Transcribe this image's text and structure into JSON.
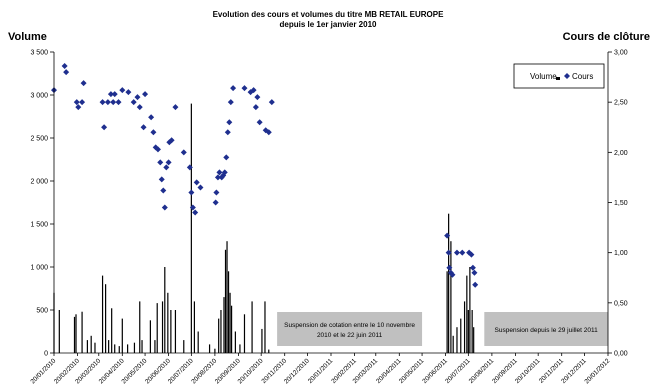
{
  "chart_data": {
    "type": "bar",
    "title": "Evolution des cours et volumes du titre MB RETAIL EUROPE",
    "subtitle": "depuis le 1er janvier 2010",
    "ylabel_left": "Volume",
    "ylabel_right": "Cours de clôture",
    "ylim_left": [
      0,
      3500
    ],
    "ylim_right": [
      0,
      3.0
    ],
    "y_ticks_left": [
      "0",
      "500",
      "1 000",
      "1 500",
      "2 000",
      "2 500",
      "3 000",
      "3 500"
    ],
    "y_ticks_right": [
      "0,00",
      "0,50",
      "1,00",
      "1,50",
      "2,00",
      "2,50",
      "3,00"
    ],
    "x_ticks": [
      "20/01/2010",
      "20/02/2010",
      "20/03/2010",
      "20/04/2010",
      "20/05/2010",
      "20/06/2010",
      "20/07/2010",
      "20/08/2010",
      "20/09/2010",
      "20/10/2010",
      "20/11/2010",
      "20/12/2010",
      "20/01/2011",
      "20/02/2011",
      "20/03/2011",
      "20/04/2011",
      "20/05/2011",
      "20/06/2011",
      "20/07/2011",
      "20/08/2011",
      "20/09/2011",
      "20/10/2011",
      "20/11/2011",
      "20/12/2011",
      "20/01/2012"
    ],
    "legend": {
      "position": "top-right",
      "items": [
        "Volume",
        "Cours"
      ]
    },
    "series": [
      {
        "name": "Volume",
        "type": "bar",
        "axis": "left",
        "color": "#000000",
        "points": [
          [
            "2010-01-20",
            700
          ],
          [
            "2010-01-27",
            500
          ],
          [
            "2010-02-16",
            420
          ],
          [
            "2010-02-18",
            450
          ],
          [
            "2010-02-26",
            480
          ],
          [
            "2010-03-05",
            150
          ],
          [
            "2010-03-10",
            200
          ],
          [
            "2010-03-15",
            120
          ],
          [
            "2010-03-25",
            900
          ],
          [
            "2010-03-29",
            800
          ],
          [
            "2010-04-02",
            150
          ],
          [
            "2010-04-06",
            520
          ],
          [
            "2010-04-10",
            100
          ],
          [
            "2010-04-16",
            80
          ],
          [
            "2010-04-20",
            400
          ],
          [
            "2010-04-27",
            100
          ],
          [
            "2010-05-06",
            120
          ],
          [
            "2010-05-13",
            600
          ],
          [
            "2010-05-16",
            150
          ],
          [
            "2010-05-27",
            380
          ],
          [
            "2010-06-02",
            150
          ],
          [
            "2010-06-05",
            580
          ],
          [
            "2010-06-12",
            600
          ],
          [
            "2010-06-15",
            1000
          ],
          [
            "2010-06-19",
            700
          ],
          [
            "2010-06-23",
            500
          ],
          [
            "2010-06-29",
            500
          ],
          [
            "2010-07-10",
            150
          ],
          [
            "2010-07-20",
            2900
          ],
          [
            "2010-07-24",
            600
          ],
          [
            "2010-07-29",
            250
          ],
          [
            "2010-08-13",
            100
          ],
          [
            "2010-08-20",
            50
          ],
          [
            "2010-08-25",
            400
          ],
          [
            "2010-08-28",
            500
          ],
          [
            "2010-09-01",
            650
          ],
          [
            "2010-09-03",
            1200
          ],
          [
            "2010-09-05",
            1300
          ],
          [
            "2010-09-07",
            950
          ],
          [
            "2010-09-09",
            700
          ],
          [
            "2010-09-11",
            550
          ],
          [
            "2010-09-16",
            250
          ],
          [
            "2010-09-22",
            100
          ],
          [
            "2010-09-28",
            450
          ],
          [
            "2010-10-08",
            600
          ],
          [
            "2010-10-21",
            280
          ],
          [
            "2010-10-25",
            600
          ],
          [
            "2010-10-30",
            40
          ],
          [
            "2011-06-22",
            950
          ],
          [
            "2011-06-24",
            1620
          ],
          [
            "2011-06-27",
            1300
          ],
          [
            "2011-06-30",
            200
          ],
          [
            "2011-07-05",
            300
          ],
          [
            "2011-07-10",
            400
          ],
          [
            "2011-07-15",
            600
          ],
          [
            "2011-07-18",
            900
          ],
          [
            "2011-07-20",
            500
          ],
          [
            "2011-07-22",
            1000
          ],
          [
            "2011-07-25",
            500
          ],
          [
            "2011-07-27",
            300
          ]
        ]
      },
      {
        "name": "Cours",
        "type": "scatter",
        "axis": "right",
        "color": "#1f2f8f",
        "points": [
          [
            "2010-01-20",
            2.62
          ],
          [
            "2010-02-03",
            2.86
          ],
          [
            "2010-02-05",
            2.8
          ],
          [
            "2010-02-19",
            2.5
          ],
          [
            "2010-02-21",
            2.45
          ],
          [
            "2010-02-26",
            2.5
          ],
          [
            "2010-02-28",
            2.69
          ],
          [
            "2010-03-25",
            2.5
          ],
          [
            "2010-03-27",
            2.25
          ],
          [
            "2010-04-01",
            2.5
          ],
          [
            "2010-04-05",
            2.58
          ],
          [
            "2010-04-08",
            2.5
          ],
          [
            "2010-04-10",
            2.58
          ],
          [
            "2010-04-15",
            2.5
          ],
          [
            "2010-04-20",
            2.62
          ],
          [
            "2010-04-28",
            2.6
          ],
          [
            "2010-05-05",
            2.5
          ],
          [
            "2010-05-10",
            2.55
          ],
          [
            "2010-05-13",
            2.45
          ],
          [
            "2010-05-18",
            2.25
          ],
          [
            "2010-05-20",
            2.58
          ],
          [
            "2010-05-28",
            2.35
          ],
          [
            "2010-05-31",
            2.2
          ],
          [
            "2010-06-03",
            2.05
          ],
          [
            "2010-06-06",
            2.03
          ],
          [
            "2010-06-09",
            1.9
          ],
          [
            "2010-06-11",
            1.73
          ],
          [
            "2010-06-13",
            1.62
          ],
          [
            "2010-06-15",
            1.45
          ],
          [
            "2010-06-17",
            1.85
          ],
          [
            "2010-06-20",
            1.9
          ],
          [
            "2010-06-21",
            2.1
          ],
          [
            "2010-06-24",
            2.12
          ],
          [
            "2010-06-29",
            2.45
          ],
          [
            "2010-07-10",
            2.0
          ],
          [
            "2010-07-18",
            1.85
          ],
          [
            "2010-07-20",
            1.6
          ],
          [
            "2010-07-22",
            1.45
          ],
          [
            "2010-07-25",
            1.4
          ],
          [
            "2010-07-27",
            1.7
          ],
          [
            "2010-08-01",
            1.65
          ],
          [
            "2010-08-21",
            1.5
          ],
          [
            "2010-08-22",
            1.6
          ],
          [
            "2010-08-24",
            1.75
          ],
          [
            "2010-08-26",
            1.8
          ],
          [
            "2010-08-29",
            1.75
          ],
          [
            "2010-08-31",
            1.77
          ],
          [
            "2010-09-02",
            1.8
          ],
          [
            "2010-09-04",
            1.95
          ],
          [
            "2010-09-06",
            2.2
          ],
          [
            "2010-09-08",
            2.3
          ],
          [
            "2010-09-10",
            2.5
          ],
          [
            "2010-09-13",
            2.64
          ],
          [
            "2010-09-28",
            2.64
          ],
          [
            "2010-10-06",
            2.6
          ],
          [
            "2010-10-10",
            2.62
          ],
          [
            "2010-10-13",
            2.45
          ],
          [
            "2010-10-15",
            2.55
          ],
          [
            "2010-10-18",
            2.3
          ],
          [
            "2010-10-26",
            2.22
          ],
          [
            "2010-10-30",
            2.2
          ],
          [
            "2010-11-03",
            2.5
          ],
          [
            "2011-06-22",
            1.17
          ],
          [
            "2011-06-24",
            1.0
          ],
          [
            "2011-06-25",
            0.85
          ],
          [
            "2011-06-27",
            0.8
          ],
          [
            "2011-06-29",
            0.78
          ],
          [
            "2011-07-05",
            1.0
          ],
          [
            "2011-07-12",
            1.0
          ],
          [
            "2011-07-21",
            1.0
          ],
          [
            "2011-07-24",
            0.98
          ],
          [
            "2011-07-26",
            0.85
          ],
          [
            "2011-07-28",
            0.8
          ],
          [
            "2011-07-29",
            0.68
          ]
        ]
      }
    ],
    "annotations": [
      {
        "lines": [
          "Suspension de cotation entre le 10 novembre",
          "2010 et le 22 juin 2011"
        ],
        "start": "2010-11-10",
        "end": "2011-05-20"
      },
      {
        "lines": [
          "Suspension depuis le 29 juillet 2011"
        ],
        "start": "2011-08-10",
        "end": "2012-01-20"
      }
    ],
    "grid": false
  }
}
